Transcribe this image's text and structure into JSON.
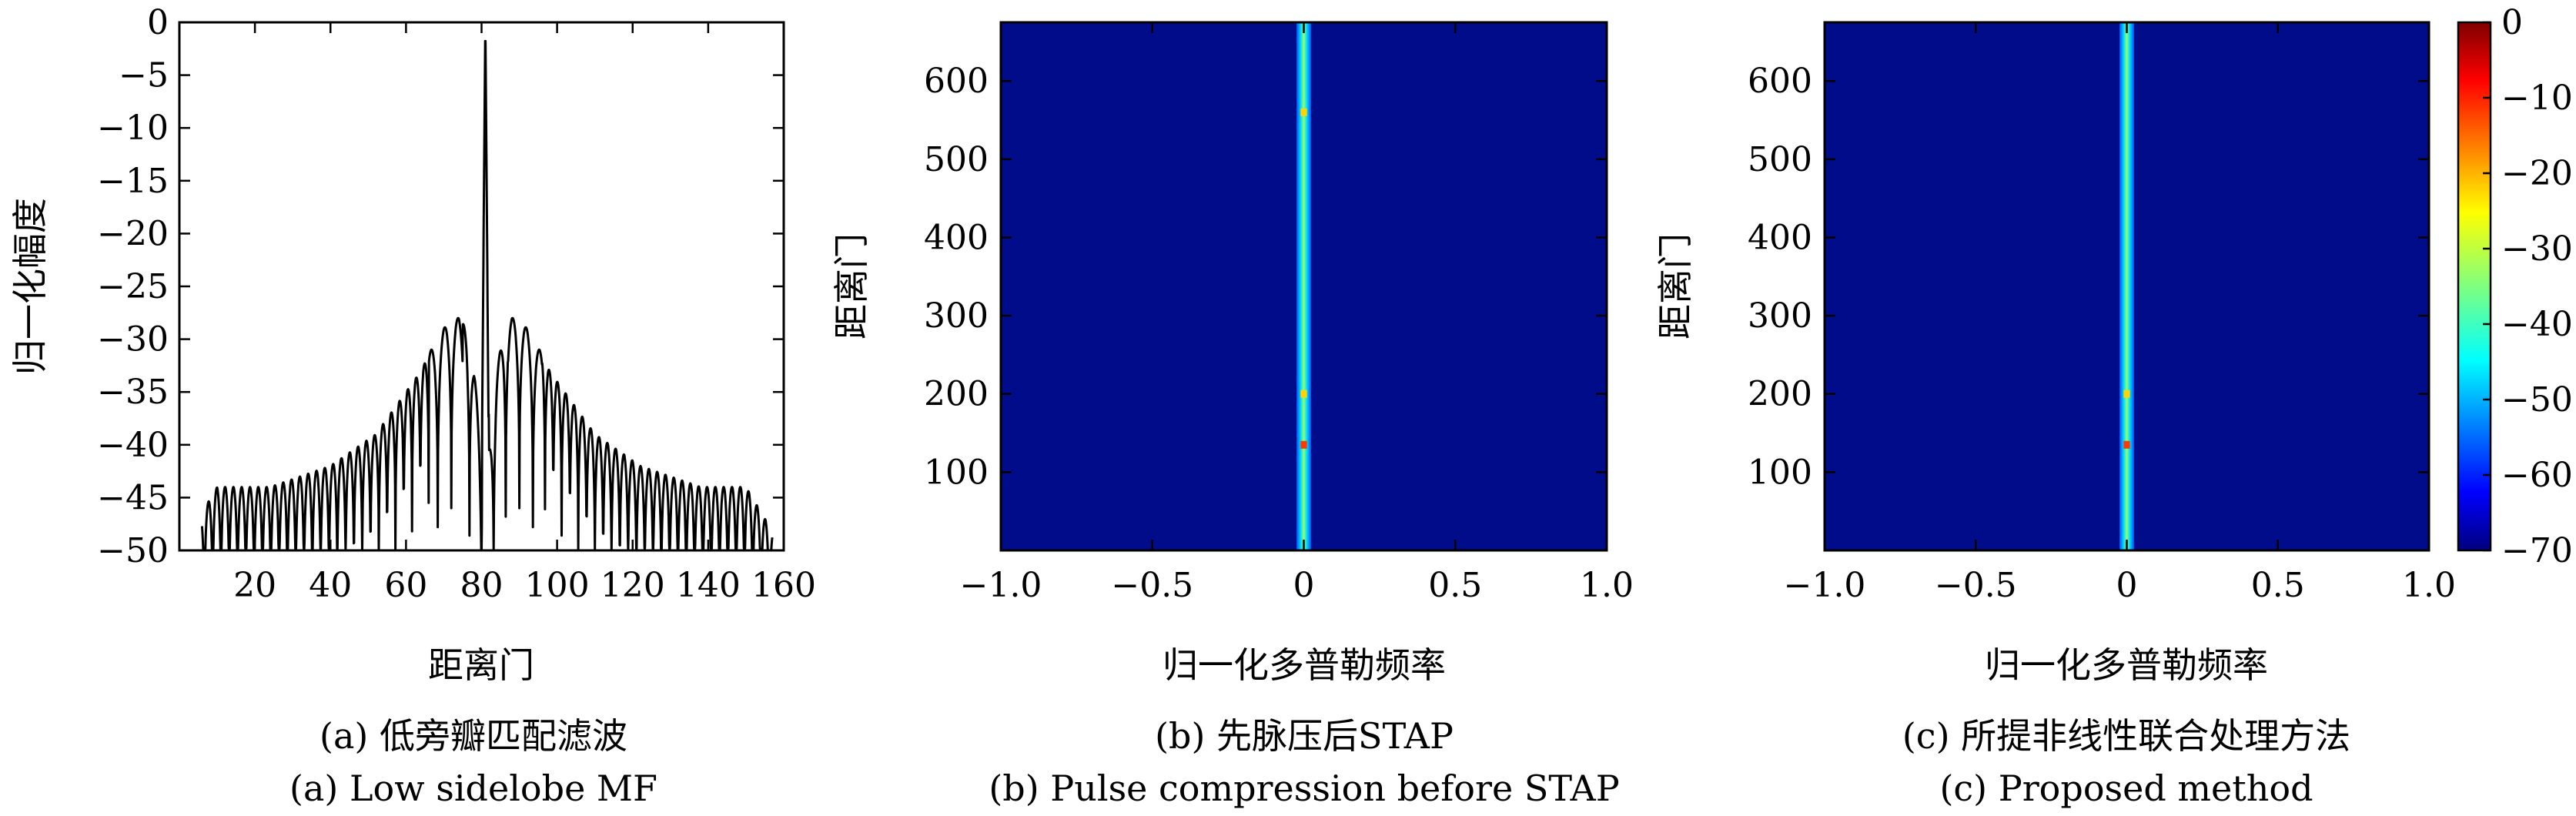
{
  "chart_data": [
    {
      "type": "line",
      "xlabel": "距离门",
      "ylabel": "归一化幅度",
      "xlim": [
        0,
        160
      ],
      "ylim": [
        -50,
        0
      ],
      "xticks": [
        20,
        40,
        60,
        80,
        100,
        120,
        140,
        160
      ],
      "yticks": [
        0,
        -5,
        -10,
        -15,
        -20,
        -25,
        -30,
        -35,
        -40,
        -45,
        -50
      ],
      "grid": false,
      "series": [
        {
          "color": "#000000",
          "x": [
            0,
            10,
            16,
            20,
            24,
            28,
            32,
            36,
            40,
            44,
            48,
            52,
            56,
            60,
            64,
            68,
            72,
            74,
            76,
            78,
            80,
            81,
            82,
            84,
            86,
            88,
            90,
            94,
            98,
            102,
            106,
            110,
            114,
            118,
            122,
            126,
            130,
            134,
            138,
            142,
            146,
            150,
            160
          ],
          "y": [
            -50,
            -44,
            -44,
            -44,
            -44,
            -43.5,
            -43,
            -42.5,
            -42,
            -41,
            -40,
            -39,
            -37,
            -35,
            -33,
            -30,
            -28,
            -28,
            -29,
            -33,
            -40,
            0,
            -40,
            -33,
            -29,
            -28,
            -28,
            -30,
            -33,
            -35,
            -37,
            -39,
            -40,
            -41,
            -42,
            -42.5,
            -43,
            -43.5,
            -44,
            -44,
            -44,
            -44,
            -50
          ]
        }
      ]
    },
    {
      "type": "heatmap",
      "xlabel": "归一化多普勒频率",
      "ylabel": "距离门",
      "xlim": [
        -1.0,
        1.0
      ],
      "ylim": [
        0,
        675
      ],
      "xticks": [
        "−1.0",
        "−0.5",
        "0",
        "0.5",
        "1.0"
      ],
      "yticks": [
        100,
        200,
        300,
        400,
        500,
        600
      ],
      "background_level": -70,
      "ridge": {
        "doppler": 0,
        "level": -45,
        "half_width": 0.015
      },
      "hotspots": [
        {
          "range_gate": 135,
          "level": -20
        },
        {
          "range_gate": 200,
          "level": -35
        },
        {
          "range_gate": 560,
          "level": -40
        }
      ]
    },
    {
      "type": "heatmap",
      "xlabel": "归一化多普勒频率",
      "ylabel": "距离门",
      "xlim": [
        -1.0,
        1.0
      ],
      "ylim": [
        0,
        675
      ],
      "xticks": [
        "−1.0",
        "−0.5",
        "0",
        "0.5",
        "1.0"
      ],
      "yticks": [
        100,
        200,
        300,
        400,
        500,
        600
      ],
      "background_level": -70,
      "ridge": {
        "doppler": 0,
        "level": -45,
        "half_width": 0.015
      },
      "hotspots": [
        {
          "range_gate": 135,
          "level": -20
        },
        {
          "range_gate": 200,
          "level": -35
        }
      ],
      "colorbar": {
        "ticks": [
          0,
          -10,
          -20,
          -30,
          -40,
          -50,
          -60,
          -70
        ],
        "range": [
          -70,
          0
        ],
        "colormap": "jet"
      }
    }
  ],
  "captions": [
    {
      "zh": "(a) 低旁瓣匹配滤波",
      "en": "(a) Low sidelobe MF"
    },
    {
      "zh": "(b) 先脉压后STAP",
      "en": "(b) Pulse compression before STAP"
    },
    {
      "zh": "(c) 所提非线性联合处理方法",
      "en": "(c) Proposed method"
    }
  ],
  "colors": {
    "heatmap_background": "#000c8a",
    "axis": "#000000",
    "curve": "#000000"
  }
}
